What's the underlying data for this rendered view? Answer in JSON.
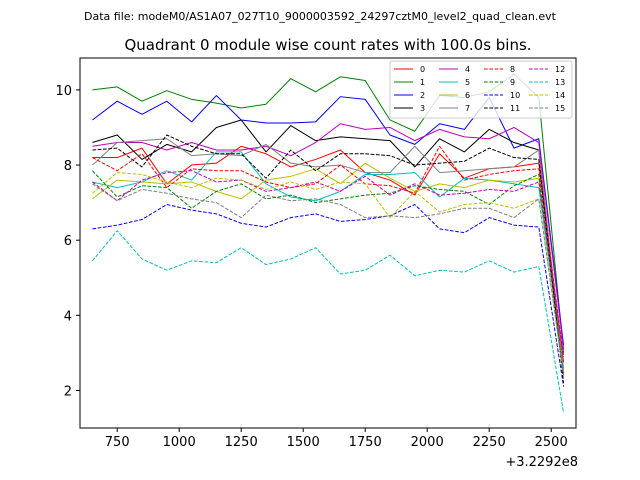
{
  "chart_data": {
    "type": "line",
    "suptitle": "Data file: modeM0/AS1A07_027T10_9000003592_24297cztM0_level2_quad_clean.evt",
    "title": "Quadrant 0 module wise count rates with 100.0s bins.",
    "xlabel": "",
    "ylabel": "",
    "x_offset_label": "+3.2292e8",
    "xlim": [
      600,
      2600
    ],
    "ylim": [
      1.0,
      10.85
    ],
    "xticks": [
      750,
      1000,
      1250,
      1500,
      1750,
      2000,
      2250,
      2500
    ],
    "yticks": [
      2,
      4,
      6,
      8,
      10
    ],
    "legend_position": "top-right",
    "x": [
      650,
      750,
      850,
      950,
      1050,
      1150,
      1250,
      1350,
      1450,
      1550,
      1650,
      1750,
      1850,
      1950,
      2050,
      2150,
      2250,
      2350,
      2450,
      2550
    ],
    "series": [
      {
        "name": "0",
        "color": "#ff0000",
        "dash": "solid",
        "values": [
          8.2,
          8.2,
          8.45,
          7.5,
          8.0,
          8.05,
          8.5,
          8.3,
          7.95,
          8.15,
          8.4,
          7.8,
          7.6,
          7.2,
          8.3,
          7.65,
          7.9,
          7.95,
          8.05,
          2.75
        ]
      },
      {
        "name": "1",
        "color": "#008000",
        "dash": "solid",
        "values": [
          10.0,
          10.08,
          9.7,
          9.98,
          9.75,
          9.65,
          9.52,
          9.62,
          10.3,
          9.95,
          10.35,
          10.25,
          9.2,
          8.9,
          9.85,
          9.8,
          9.95,
          10.42,
          9.8,
          3.0
        ]
      },
      {
        "name": "2",
        "color": "#0000ff",
        "dash": "solid",
        "values": [
          9.2,
          9.7,
          9.35,
          9.7,
          9.15,
          9.85,
          9.2,
          9.12,
          9.12,
          9.15,
          9.82,
          9.75,
          8.8,
          8.55,
          9.1,
          8.95,
          9.8,
          8.45,
          8.7,
          3.2
        ]
      },
      {
        "name": "3",
        "color": "#000000",
        "dash": "solid",
        "values": [
          8.6,
          8.8,
          8.15,
          8.55,
          8.35,
          9.0,
          9.2,
          8.35,
          9.05,
          8.65,
          8.75,
          8.7,
          8.65,
          7.95,
          8.7,
          8.35,
          8.95,
          8.6,
          8.4,
          2.4
        ]
      },
      {
        "name": "4",
        "color": "#c000c0",
        "dash": "solid",
        "values": [
          8.5,
          8.6,
          8.6,
          8.4,
          8.6,
          8.4,
          8.4,
          8.5,
          8.25,
          8.6,
          9.1,
          8.95,
          9.0,
          8.65,
          8.95,
          8.75,
          8.7,
          9.0,
          8.6,
          3.1
        ]
      },
      {
        "name": "5",
        "color": "#00bfbf",
        "dash": "solid",
        "values": [
          7.55,
          7.4,
          7.55,
          7.85,
          7.6,
          8.35,
          8.35,
          7.5,
          7.15,
          7.05,
          7.3,
          7.75,
          7.75,
          7.8,
          7.15,
          7.65,
          7.6,
          7.5,
          7.4,
          2.6
        ]
      },
      {
        "name": "6",
        "color": "#bfbf00",
        "dash": "solid",
        "values": [
          7.1,
          7.6,
          7.55,
          7.5,
          7.55,
          7.3,
          7.1,
          7.6,
          7.7,
          7.9,
          7.5,
          8.05,
          7.65,
          7.3,
          7.5,
          7.4,
          7.6,
          7.55,
          7.65,
          2.5
        ]
      },
      {
        "name": "7",
        "color": "#808080",
        "dash": "solid",
        "values": [
          8.0,
          8.6,
          8.65,
          8.7,
          8.25,
          8.3,
          8.25,
          8.55,
          8.05,
          7.95,
          8.0,
          7.8,
          7.8,
          8.5,
          7.8,
          7.85,
          7.9,
          7.95,
          8.4,
          2.5
        ]
      },
      {
        "name": "8",
        "color": "#ff0000",
        "dash": "dashed",
        "values": [
          8.2,
          7.85,
          8.3,
          7.4,
          7.9,
          7.85,
          7.85,
          7.55,
          7.4,
          7.5,
          8.0,
          7.5,
          7.45,
          7.25,
          8.5,
          7.6,
          7.75,
          7.85,
          7.9,
          2.9
        ]
      },
      {
        "name": "9",
        "color": "#008000",
        "dash": "dashed",
        "values": [
          7.85,
          7.15,
          7.45,
          7.4,
          6.85,
          7.3,
          7.5,
          7.1,
          7.2,
          7.0,
          7.1,
          7.2,
          7.25,
          7.45,
          7.35,
          7.3,
          6.95,
          7.45,
          7.75,
          2.4
        ]
      },
      {
        "name": "10",
        "color": "#0000ff",
        "dash": "dashed",
        "values": [
          6.3,
          6.4,
          6.55,
          6.95,
          6.8,
          6.7,
          6.45,
          6.35,
          6.6,
          6.7,
          6.5,
          6.55,
          6.65,
          6.95,
          6.3,
          6.2,
          6.6,
          6.4,
          6.35,
          2.1
        ]
      },
      {
        "name": "11",
        "color": "#000000",
        "dash": "dashed",
        "values": [
          8.4,
          8.45,
          7.95,
          8.8,
          8.5,
          8.3,
          8.3,
          7.65,
          8.4,
          7.85,
          8.3,
          8.3,
          8.25,
          8.0,
          8.05,
          8.1,
          8.45,
          8.2,
          8.15,
          2.2
        ]
      },
      {
        "name": "12",
        "color": "#c000c0",
        "dash": "dashed",
        "values": [
          7.55,
          7.05,
          7.6,
          7.8,
          7.85,
          7.55,
          7.6,
          7.3,
          7.4,
          7.55,
          7.3,
          7.7,
          7.2,
          7.5,
          7.2,
          7.25,
          7.35,
          7.3,
          7.55,
          2.9
        ]
      },
      {
        "name": "13",
        "color": "#00bfbf",
        "dash": "dashed",
        "values": [
          5.45,
          6.25,
          5.5,
          5.2,
          5.45,
          5.4,
          5.8,
          5.35,
          5.5,
          5.8,
          5.1,
          5.2,
          5.6,
          5.05,
          5.2,
          5.15,
          5.45,
          5.15,
          5.3,
          1.4
        ]
      },
      {
        "name": "14",
        "color": "#bfbf00",
        "dash": "dashed",
        "values": [
          7.25,
          7.8,
          7.75,
          7.55,
          7.4,
          7.65,
          7.6,
          7.35,
          7.55,
          7.35,
          7.55,
          7.5,
          6.6,
          7.3,
          6.75,
          6.95,
          7.0,
          6.85,
          7.1,
          2.4
        ]
      },
      {
        "name": "15",
        "color": "#808080",
        "dash": "dashed",
        "values": [
          7.5,
          7.05,
          7.35,
          7.25,
          7.1,
          7.0,
          6.6,
          7.2,
          7.05,
          7.1,
          6.95,
          6.6,
          6.65,
          6.6,
          6.7,
          6.85,
          6.85,
          6.6,
          7.1,
          2.4
        ]
      }
    ]
  }
}
